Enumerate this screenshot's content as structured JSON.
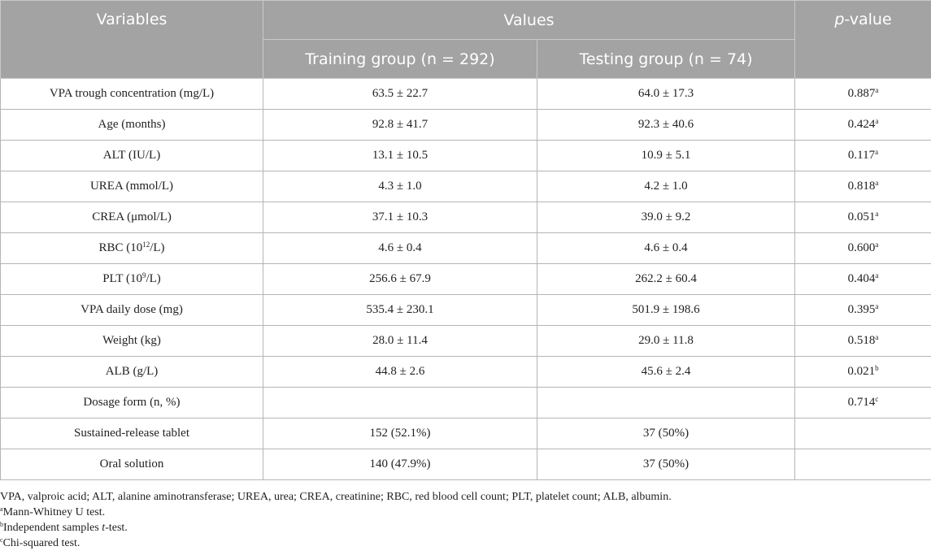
{
  "header": {
    "variables": "Variables",
    "values": "Values",
    "p_italic": "p",
    "p_rest": "-value",
    "training": "Training group (n = 292)",
    "testing": "Testing group (n = 74)"
  },
  "rows": [
    {
      "label": "VPA trough concentration (mg/L)",
      "label_sup": "",
      "label_after": "",
      "training": "63.5 ± 22.7",
      "testing": "64.0 ± 17.3",
      "p": "0.887",
      "p_sup": "a"
    },
    {
      "label": "Age (months)",
      "label_sup": "",
      "label_after": "",
      "training": "92.8 ± 41.7",
      "testing": "92.3 ± 40.6",
      "p": "0.424",
      "p_sup": "a"
    },
    {
      "label": "ALT (IU/L)",
      "label_sup": "",
      "label_after": "",
      "training": "13.1 ± 10.5",
      "testing": "10.9 ± 5.1",
      "p": "0.117",
      "p_sup": "a"
    },
    {
      "label": "UREA (mmol/L)",
      "label_sup": "",
      "label_after": "",
      "training": "4.3 ± 1.0",
      "testing": "4.2 ± 1.0",
      "p": "0.818",
      "p_sup": "a"
    },
    {
      "label": "CREA (μmol/L)",
      "label_sup": "",
      "label_after": "",
      "training": "37.1 ± 10.3",
      "testing": "39.0 ± 9.2",
      "p": "0.051",
      "p_sup": "a"
    },
    {
      "label": "RBC (10",
      "label_sup": "12",
      "label_after": "/L)",
      "training": "4.6 ± 0.4",
      "testing": "4.6 ± 0.4",
      "p": "0.600",
      "p_sup": "a"
    },
    {
      "label": "PLT (10",
      "label_sup": "9",
      "label_after": "/L)",
      "training": "256.6 ± 67.9",
      "testing": "262.2 ± 60.4",
      "p": "0.404",
      "p_sup": "a"
    },
    {
      "label": "VPA daily dose (mg)",
      "label_sup": "",
      "label_after": "",
      "training": "535.4 ± 230.1",
      "testing": "501.9 ± 198.6",
      "p": "0.395",
      "p_sup": "a"
    },
    {
      "label": "Weight (kg)",
      "label_sup": "",
      "label_after": "",
      "training": "28.0 ± 11.4",
      "testing": "29.0 ± 11.8",
      "p": "0.518",
      "p_sup": "a"
    },
    {
      "label": "ALB (g/L)",
      "label_sup": "",
      "label_after": "",
      "training": "44.8 ± 2.6",
      "testing": "45.6 ± 2.4",
      "p": "0.021",
      "p_sup": "b"
    },
    {
      "label": "Dosage form (n, %)",
      "label_sup": "",
      "label_after": "",
      "training": "",
      "testing": "",
      "p": "0.714",
      "p_sup": "c"
    },
    {
      "label": "Sustained-release tablet",
      "label_sup": "",
      "label_after": "",
      "training": "152 (52.1%)",
      "testing": "37 (50%)",
      "p": "",
      "p_sup": ""
    },
    {
      "label": "Oral solution",
      "label_sup": "",
      "label_after": "",
      "training": "140 (47.9%)",
      "testing": "37 (50%)",
      "p": "",
      "p_sup": ""
    }
  ],
  "footnotes": {
    "abbreviations": "VPA, valproic acid; ALT, alanine aminotransferase; UREA, urea; CREA, creatinine; RBC, red blood cell count; PLT, platelet count; ALB, albumin.",
    "a_mark": "a",
    "a_text": "Mann-Whitney U test.",
    "b_mark": "b",
    "b_text_pre": "Independent samples ",
    "b_text_italic": "t",
    "b_text_post": "-test.",
    "c_mark": "c",
    "c_text": "Chi-squared test."
  }
}
